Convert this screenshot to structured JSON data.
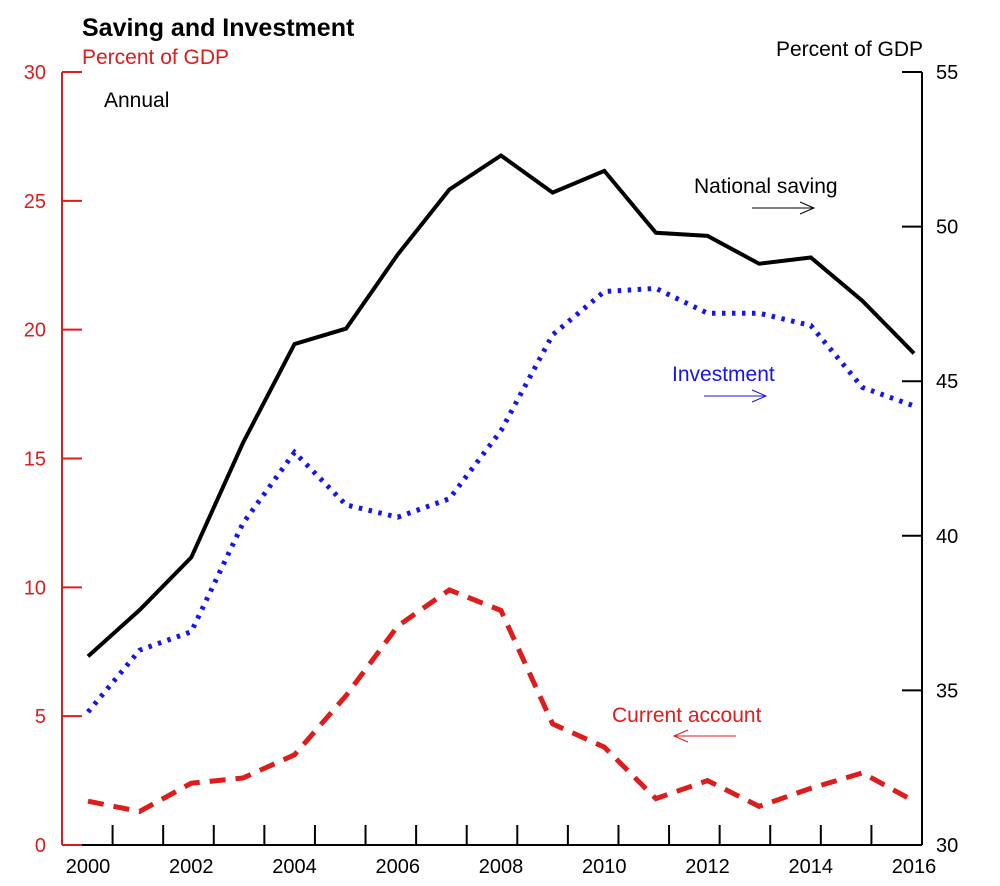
{
  "chart_data": {
    "type": "line",
    "title": "Saving and Investment",
    "frequency_label": "Annual",
    "left_axis": {
      "label": "Percent of GDP",
      "ylim": [
        0,
        30
      ],
      "ticks": [
        "0",
        "5",
        "10",
        "15",
        "20",
        "25",
        "30"
      ],
      "color": "#dd1c1c"
    },
    "right_axis": {
      "label": "Percent of GDP",
      "ylim": [
        30,
        55
      ],
      "ticks": [
        "30",
        "35",
        "40",
        "45",
        "50",
        "55"
      ],
      "color": "#000000"
    },
    "xlim": [
      2000,
      2016
    ],
    "x_ticks": [
      "2000",
      "2002",
      "2004",
      "2006",
      "2008",
      "2010",
      "2012",
      "2014",
      "2016"
    ],
    "x": [
      2000,
      2001,
      2002,
      2003,
      2004,
      2005,
      2006,
      2007,
      2008,
      2009,
      2010,
      2011,
      2012,
      2013,
      2014,
      2015,
      2016
    ],
    "series": [
      {
        "name": "National saving",
        "axis": "right",
        "color": "#000000",
        "style": "solid",
        "arrow": "right",
        "values": [
          36.1,
          37.6,
          39.3,
          43.0,
          46.2,
          46.7,
          49.1,
          51.2,
          52.3,
          51.1,
          51.8,
          49.8,
          49.7,
          48.8,
          49.0,
          47.6,
          45.9
        ]
      },
      {
        "name": "Investment",
        "axis": "right",
        "color": "#1515ee",
        "style": "dotted",
        "arrow": "right",
        "values": [
          34.3,
          36.3,
          36.9,
          40.4,
          42.7,
          41.0,
          40.6,
          41.2,
          43.4,
          46.5,
          47.9,
          48.0,
          47.2,
          47.2,
          46.8,
          44.8,
          44.2
        ]
      },
      {
        "name": "Current account",
        "axis": "left",
        "color": "#dd1c1c",
        "style": "dashed",
        "arrow": "left",
        "values": [
          1.7,
          1.3,
          2.4,
          2.6,
          3.5,
          5.8,
          8.5,
          9.9,
          9.1,
          4.7,
          3.8,
          1.8,
          2.5,
          1.5,
          2.2,
          2.8,
          1.7
        ]
      }
    ],
    "grid": false
  }
}
